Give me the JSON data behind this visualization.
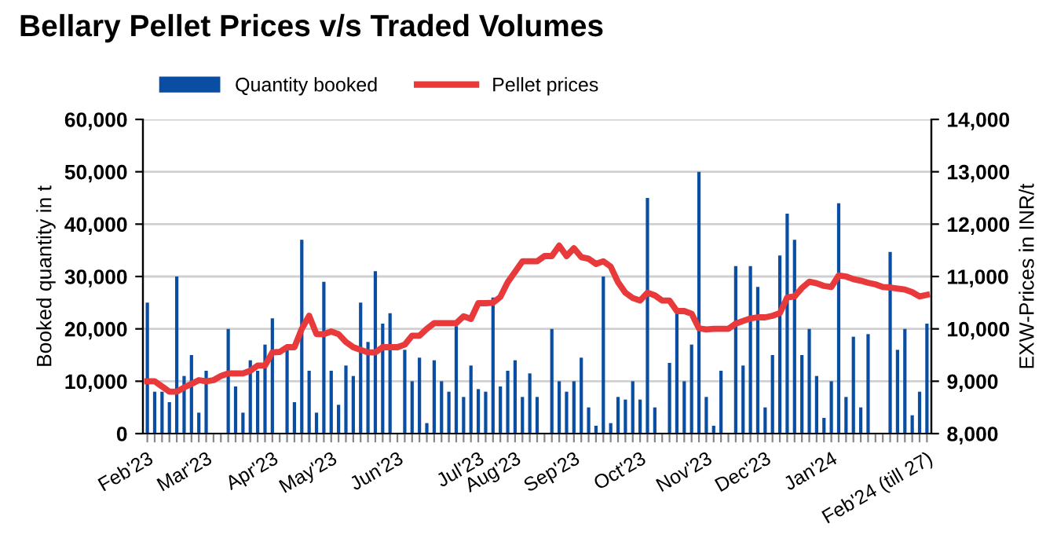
{
  "chart_data": {
    "type": "bar",
    "title": "Bellary Pellet Prices v/s Traded Volumes",
    "categories": [
      "Feb'23",
      null,
      null,
      null,
      null,
      null,
      null,
      null,
      "Mar'23",
      null,
      null,
      null,
      null,
      null,
      null,
      null,
      null,
      "Apr'23",
      null,
      null,
      null,
      null,
      null,
      null,
      null,
      "May'23",
      null,
      null,
      null,
      null,
      null,
      null,
      null,
      null,
      "Jun'23",
      null,
      null,
      null,
      null,
      null,
      null,
      null,
      null,
      null,
      null,
      "Jul'23",
      null,
      null,
      null,
      null,
      "Aug'23",
      null,
      null,
      null,
      null,
      null,
      null,
      null,
      "Sep'23",
      null,
      null,
      null,
      null,
      null,
      null,
      null,
      null,
      "Oct'23",
      null,
      null,
      null,
      null,
      null,
      null,
      null,
      null,
      "Nov'23",
      null,
      null,
      null,
      null,
      null,
      null,
      null,
      "Dec'23",
      null,
      null,
      null,
      null,
      null,
      null,
      null,
      null,
      "Jan'24",
      null,
      null,
      null,
      null,
      null,
      null,
      null,
      null,
      null,
      null,
      null,
      null,
      "Feb'24 (till 27)"
    ],
    "series": [
      {
        "name": "Quantity booked",
        "color": "#0a4ea3",
        "values": [
          25000,
          8000,
          8000,
          6000,
          30000,
          11000,
          15000,
          4000,
          12000,
          null,
          null,
          20000,
          9000,
          4000,
          14000,
          12000,
          17000,
          22000,
          null,
          16000,
          6000,
          37000,
          12000,
          4000,
          29000,
          12000,
          5500,
          13000,
          11000,
          25000,
          17500,
          31000,
          21000,
          23000,
          null,
          16000,
          10000,
          14500,
          2000,
          14000,
          10000,
          8000,
          20500,
          7000,
          13000,
          8500,
          8000,
          26000,
          9000,
          12000,
          14000,
          7000,
          11500,
          7000,
          null,
          20000,
          10000,
          8000,
          10000,
          14500,
          5000,
          1500,
          30000,
          2000,
          7000,
          6500,
          10000,
          6500,
          45000,
          5000,
          null,
          13500,
          23000,
          10000,
          17000,
          50000,
          7000,
          1500,
          12000,
          null,
          32000,
          13000,
          32000,
          28000,
          5000,
          15000,
          34000,
          42000,
          37000,
          15000,
          20000,
          11000,
          3000,
          10000,
          44000,
          7000,
          18500,
          5000,
          19000,
          null,
          null,
          34700,
          16000,
          20000,
          3500,
          8000,
          21000
        ]
      },
      {
        "name": "Pellet prices",
        "type": "line",
        "axis": "y2",
        "color": "#e8393b",
        "values": [
          9000,
          9000,
          8900,
          8800,
          8800,
          8880,
          8950,
          9020,
          9000,
          9020,
          9100,
          9150,
          9150,
          9150,
          9200,
          9300,
          9300,
          9550,
          9560,
          9650,
          9650,
          10000,
          10250,
          9900,
          9900,
          9950,
          9900,
          9750,
          9650,
          9600,
          9550,
          9550,
          9650,
          9650,
          9650,
          9700,
          9870,
          9870,
          10000,
          10110,
          10110,
          10110,
          10110,
          10240,
          10190,
          10490,
          10490,
          10500,
          10610,
          10890,
          11090,
          11290,
          11290,
          11290,
          11390,
          11390,
          11590,
          11390,
          11540,
          11370,
          11340,
          11240,
          11290,
          11190,
          10890,
          10690,
          10590,
          10540,
          10690,
          10640,
          10540,
          10540,
          10340,
          10340,
          10290,
          10010,
          9990,
          10000,
          10000,
          10000,
          10100,
          10150,
          10200,
          10220,
          10220,
          10250,
          10300,
          10600,
          10620,
          10780,
          10900,
          10870,
          10820,
          10800,
          11020,
          11000,
          10950,
          10920,
          10880,
          10850,
          10800,
          10790,
          10770,
          10750,
          10700,
          10620,
          10650
        ]
      }
    ],
    "ylabel": "Booked quantity in t",
    "y2label": "EXW-Prices in INR/t",
    "ylim": [
      0,
      60000
    ],
    "yticks": [
      {
        "value": 0,
        "label": "0"
      },
      {
        "value": 10000,
        "label": "10,000"
      },
      {
        "value": 20000,
        "label": "20,000"
      },
      {
        "value": 30000,
        "label": "30,000"
      },
      {
        "value": 40000,
        "label": "40,000"
      },
      {
        "value": 50000,
        "label": "50,000"
      },
      {
        "value": 60000,
        "label": "60,000"
      }
    ],
    "y2lim": [
      8000,
      14000
    ],
    "y2ticks": [
      {
        "value": 8000,
        "label": "8,000"
      },
      {
        "value": 9000,
        "label": "9,000"
      },
      {
        "value": 10000,
        "label": "10,000"
      },
      {
        "value": 11000,
        "label": "11,000"
      },
      {
        "value": 12000,
        "label": "12,000"
      },
      {
        "value": 13000,
        "label": "13,000"
      },
      {
        "value": 14000,
        "label": "14,000"
      }
    ],
    "grid": "y",
    "legend": "top"
  }
}
